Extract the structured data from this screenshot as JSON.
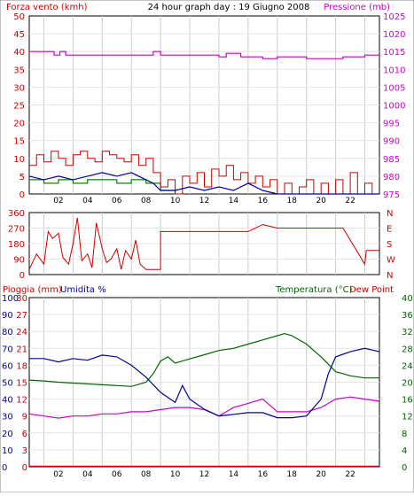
{
  "title": "24 hour graph day : 19 Giugno 2008",
  "colors": {
    "wind": "#cc0000",
    "gust": "#cc0000",
    "avg": "#000099",
    "green": "#008800",
    "pressure": "#cc00cc",
    "temp": "#006600",
    "dew": "#cc0000",
    "hum": "#000099",
    "rain": "#cc0000",
    "axisBlue": "#000099"
  },
  "chart_data": [
    {
      "type": "line",
      "left_label": "Forza vento (kmh)",
      "right_label": "Pressione (mb)",
      "left_ticks": [
        "0",
        "5",
        "10",
        "15",
        "20",
        "25",
        "30",
        "35",
        "40",
        "45",
        "50"
      ],
      "right_ticks": [
        "975",
        "980",
        "985",
        "990",
        "995",
        "1000",
        "1005",
        "1010",
        "1015",
        "1020",
        "1025"
      ],
      "x_ticks": [
        "02",
        "04",
        "06",
        "08",
        "10",
        "12",
        "14",
        "16",
        "18",
        "20",
        "22"
      ],
      "ylim_left": [
        0,
        50
      ],
      "ylim_right": [
        975,
        1025
      ],
      "pressure": {
        "x": [
          0,
          1.7,
          1.7,
          2.1,
          2.1,
          2.5,
          2.5,
          8.5,
          8.5,
          9,
          9,
          13,
          13,
          13.5,
          13.5,
          14.5,
          14.5,
          16,
          16,
          17,
          17,
          19,
          19,
          21.5,
          21.5,
          23,
          23,
          24
        ],
        "y": [
          1015,
          1015,
          1014,
          1014,
          1015,
          1015,
          1014,
          1014,
          1015,
          1015,
          1014,
          1014,
          1013.5,
          1013.5,
          1014.5,
          1014.5,
          1013.5,
          1013.5,
          1013,
          1013,
          1013.5,
          1013.5,
          1013,
          1013,
          1013.5,
          1013.5,
          1014,
          1014
        ]
      },
      "gust": {
        "x": [
          0,
          0.5,
          1,
          1.5,
          2,
          2.5,
          3,
          3.5,
          4,
          4.5,
          5,
          5.5,
          6,
          6.5,
          7,
          7.5,
          8,
          8.5,
          9,
          9.5,
          10,
          10.5,
          11,
          11.5,
          12,
          12.5,
          13,
          13.5,
          14,
          14.5,
          15,
          15.5,
          16,
          16.5,
          17,
          17.5,
          18,
          18.5,
          19,
          19.5,
          20,
          20.5,
          21,
          21.5,
          22,
          22.5,
          23,
          23.5
        ],
        "y": [
          8,
          11,
          9,
          12,
          10,
          8,
          11,
          12,
          10,
          9,
          12,
          11,
          10,
          9,
          11,
          8,
          10,
          6,
          2,
          4,
          0,
          5,
          3,
          6,
          2,
          7,
          5,
          8,
          4,
          6,
          3,
          5,
          2,
          4,
          0,
          3,
          0,
          2,
          4,
          0,
          3,
          0,
          4,
          0,
          6,
          0,
          3,
          0
        ]
      },
      "average": {
        "x": [
          0,
          1,
          2,
          3,
          4,
          5,
          6,
          7,
          7.5,
          8,
          8.5,
          9,
          10,
          11,
          12,
          13,
          14,
          15,
          16,
          17,
          18,
          19,
          20,
          21,
          22,
          23,
          24
        ],
        "y": [
          5,
          4,
          5,
          4,
          5,
          6,
          5,
          6,
          5,
          4,
          3,
          1,
          1,
          2,
          1,
          2,
          1,
          3,
          1,
          0,
          0,
          0,
          0,
          0,
          0,
          0,
          0
        ]
      },
      "green": {
        "x": [
          0,
          1,
          2,
          3,
          4,
          5,
          6,
          7,
          8,
          9,
          10
        ],
        "y": [
          4,
          3,
          4,
          3,
          4,
          4,
          3,
          4,
          3,
          1,
          0
        ]
      }
    },
    {
      "type": "line",
      "left_ticks": [
        "0",
        "90",
        "180",
        "270",
        "360"
      ],
      "right_ticks": [
        "N",
        "W",
        "S",
        "E",
        "N"
      ],
      "ylim": [
        0,
        360
      ],
      "direction": {
        "x": [
          0,
          0.5,
          1,
          1.3,
          1.6,
          2,
          2.3,
          2.7,
          3,
          3.3,
          3.6,
          4,
          4.3,
          4.6,
          5,
          5.3,
          5.6,
          6,
          6.3,
          6.6,
          7,
          7.3,
          7.6,
          8,
          8.5,
          9,
          9,
          15,
          16,
          17,
          18,
          19,
          20,
          21,
          21.5,
          23,
          23.1,
          24
        ],
        "y": [
          30,
          120,
          60,
          250,
          210,
          240,
          100,
          60,
          180,
          330,
          80,
          120,
          40,
          300,
          150,
          70,
          90,
          150,
          30,
          140,
          90,
          200,
          60,
          30,
          30,
          30,
          250,
          250,
          290,
          270,
          270,
          270,
          270,
          270,
          270,
          60,
          140,
          140
        ]
      }
    },
    {
      "type": "line",
      "left_label_1": "Pioggia (mm)",
      "left_label_2": "Umidita %",
      "right_label": "Temperatura (°C)",
      "right_label_2": "Dew Point",
      "rain_ticks": [
        "0",
        "3",
        "6",
        "9",
        "12",
        "15",
        "18",
        "21",
        "24",
        "27",
        "30"
      ],
      "hum_ticks": [
        "0",
        "10",
        "20",
        "30",
        "40",
        "50",
        "60",
        "70",
        "80",
        "90",
        "100"
      ],
      "temp_ticks": [
        "0",
        "4",
        "8",
        "12",
        "16",
        "20",
        "24",
        "28",
        "32",
        "36",
        "40"
      ],
      "x_ticks": [
        "02",
        "04",
        "06",
        "08",
        "10",
        "12",
        "14",
        "16",
        "18",
        "20",
        "22"
      ],
      "temperature": {
        "x": [
          0,
          1,
          2,
          3,
          4,
          5,
          6,
          7,
          7.5,
          8,
          8.5,
          9,
          9.5,
          10,
          10.5,
          11,
          12,
          13,
          14,
          15,
          16,
          17,
          17.5,
          18,
          19,
          20,
          21,
          22,
          23,
          24
        ],
        "y": [
          20.5,
          20.3,
          20,
          19.8,
          19.6,
          19.4,
          19.2,
          19,
          19.5,
          20,
          22,
          25,
          26,
          24.5,
          25,
          25.5,
          26.5,
          27.5,
          28,
          29,
          30,
          31,
          31.5,
          31,
          29,
          26,
          22.5,
          21.5,
          21,
          21
        ]
      },
      "dewpoint": {
        "x": [
          0,
          1,
          2,
          3,
          4,
          5,
          6,
          7,
          8,
          9,
          10,
          11,
          12,
          13,
          14,
          15,
          16,
          17,
          18,
          19,
          20,
          21,
          22,
          23,
          24
        ],
        "y": [
          12.5,
          12,
          11.5,
          12,
          12,
          12.5,
          12.5,
          13,
          13,
          13.5,
          14,
          14,
          13.5,
          12,
          14,
          15,
          16,
          13,
          13,
          13,
          14,
          16,
          16.5,
          16,
          15.5
        ]
      },
      "humidity": {
        "x": [
          0,
          1,
          2,
          3,
          4,
          5,
          6,
          7,
          8,
          9,
          10,
          10.5,
          11,
          12,
          13,
          14,
          15,
          16,
          17,
          18,
          19,
          20,
          20.5,
          21,
          22,
          23,
          24
        ],
        "y": [
          64,
          64,
          62,
          64,
          63,
          66,
          65,
          60,
          53,
          44,
          38,
          48,
          40,
          34,
          30,
          31,
          32,
          32,
          29,
          29,
          30,
          40,
          55,
          65,
          68,
          70,
          68
        ]
      },
      "rain": {
        "x": [
          0,
          24
        ],
        "y": [
          0.1,
          0.1
        ]
      }
    }
  ]
}
